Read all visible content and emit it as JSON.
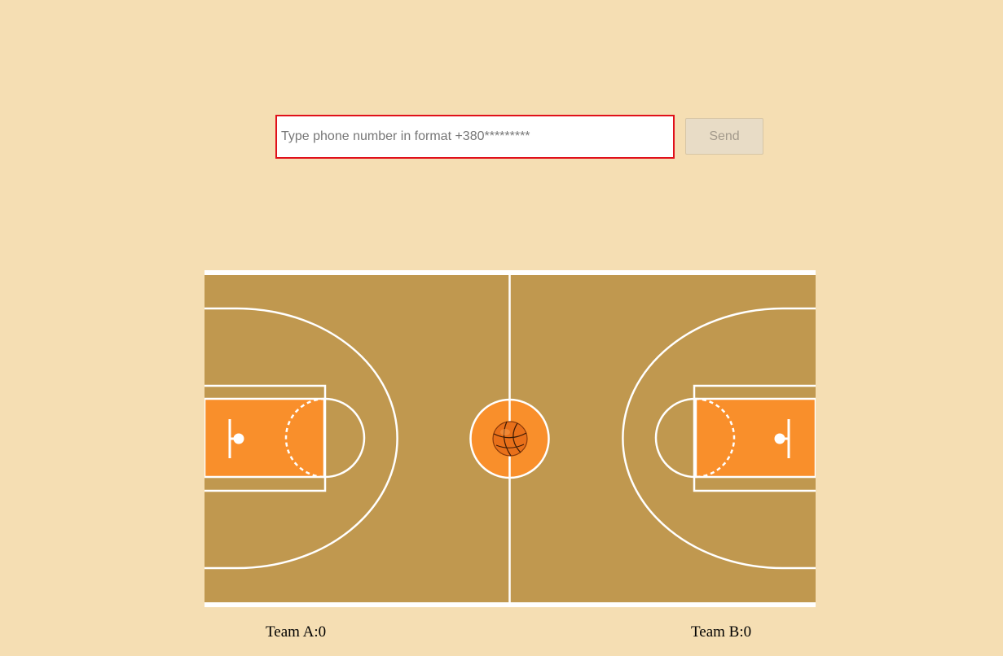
{
  "form": {
    "phone_input": {
      "value": "",
      "placeholder": "Type phone number in format +380*********"
    },
    "send_label": "Send"
  },
  "court": {
    "floor_color": "#c0984f",
    "paint_color": "#f98f2b",
    "line_color": "#ffffff",
    "ball_icon": "basketball-icon"
  },
  "scoreboard": {
    "team_a": "Team A:0",
    "team_b": "Team B:0"
  }
}
